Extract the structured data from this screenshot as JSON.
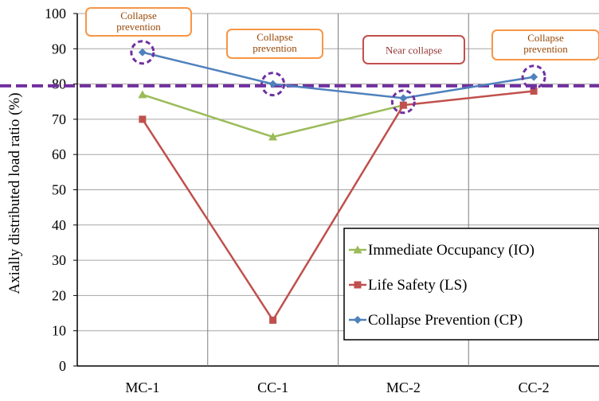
{
  "colors": {
    "io": "#9BBB59",
    "ls": "#C0504D",
    "cp": "#4F81BD",
    "threshold": "#7030A0",
    "box_orange": "#F79646",
    "box_red": "#C0504D",
    "grid": "#7f7f7f"
  },
  "chart_data": {
    "type": "line",
    "categories": [
      "MC-1",
      "CC-1",
      "MC-2",
      "CC-2"
    ],
    "ylabel": "Axially distributed load ratio (%)",
    "xlabel": "",
    "ylim": [
      0,
      100
    ],
    "yticks": [
      0,
      10,
      20,
      30,
      40,
      50,
      60,
      70,
      80,
      90,
      100
    ],
    "grid": true,
    "legend_position": "bottom-right",
    "series": [
      {
        "key": "io",
        "name": "Immediate Occupancy (IO)",
        "values": [
          77,
          65,
          74,
          null
        ],
        "marker": "triangle"
      },
      {
        "key": "ls",
        "name": "Life Safety (LS)",
        "values": [
          70,
          13,
          74,
          78
        ],
        "marker": "square"
      },
      {
        "key": "cp",
        "name": "Collapse Prevention (CP)",
        "values": [
          89,
          80,
          76,
          82
        ],
        "marker": "diamond"
      }
    ],
    "threshold_line": {
      "value": 79.5,
      "style": "dashed"
    },
    "circled_points": [
      {
        "category_index": 0,
        "value": 89
      },
      {
        "category_index": 1,
        "value": 80
      },
      {
        "category_index": 2,
        "value": 75
      },
      {
        "category_index": 3,
        "value": 82
      }
    ],
    "annotations": [
      {
        "category_index": 0,
        "lines": [
          "Collapse",
          "prevention"
        ],
        "style": "orange"
      },
      {
        "category_index": 1,
        "lines": [
          "Collapse",
          "prevention"
        ],
        "style": "orange"
      },
      {
        "category_index": 2,
        "lines": [
          "Near collapse"
        ],
        "style": "red"
      },
      {
        "category_index": 3,
        "lines": [
          "Collapse",
          "prevention"
        ],
        "style": "orange"
      }
    ]
  }
}
